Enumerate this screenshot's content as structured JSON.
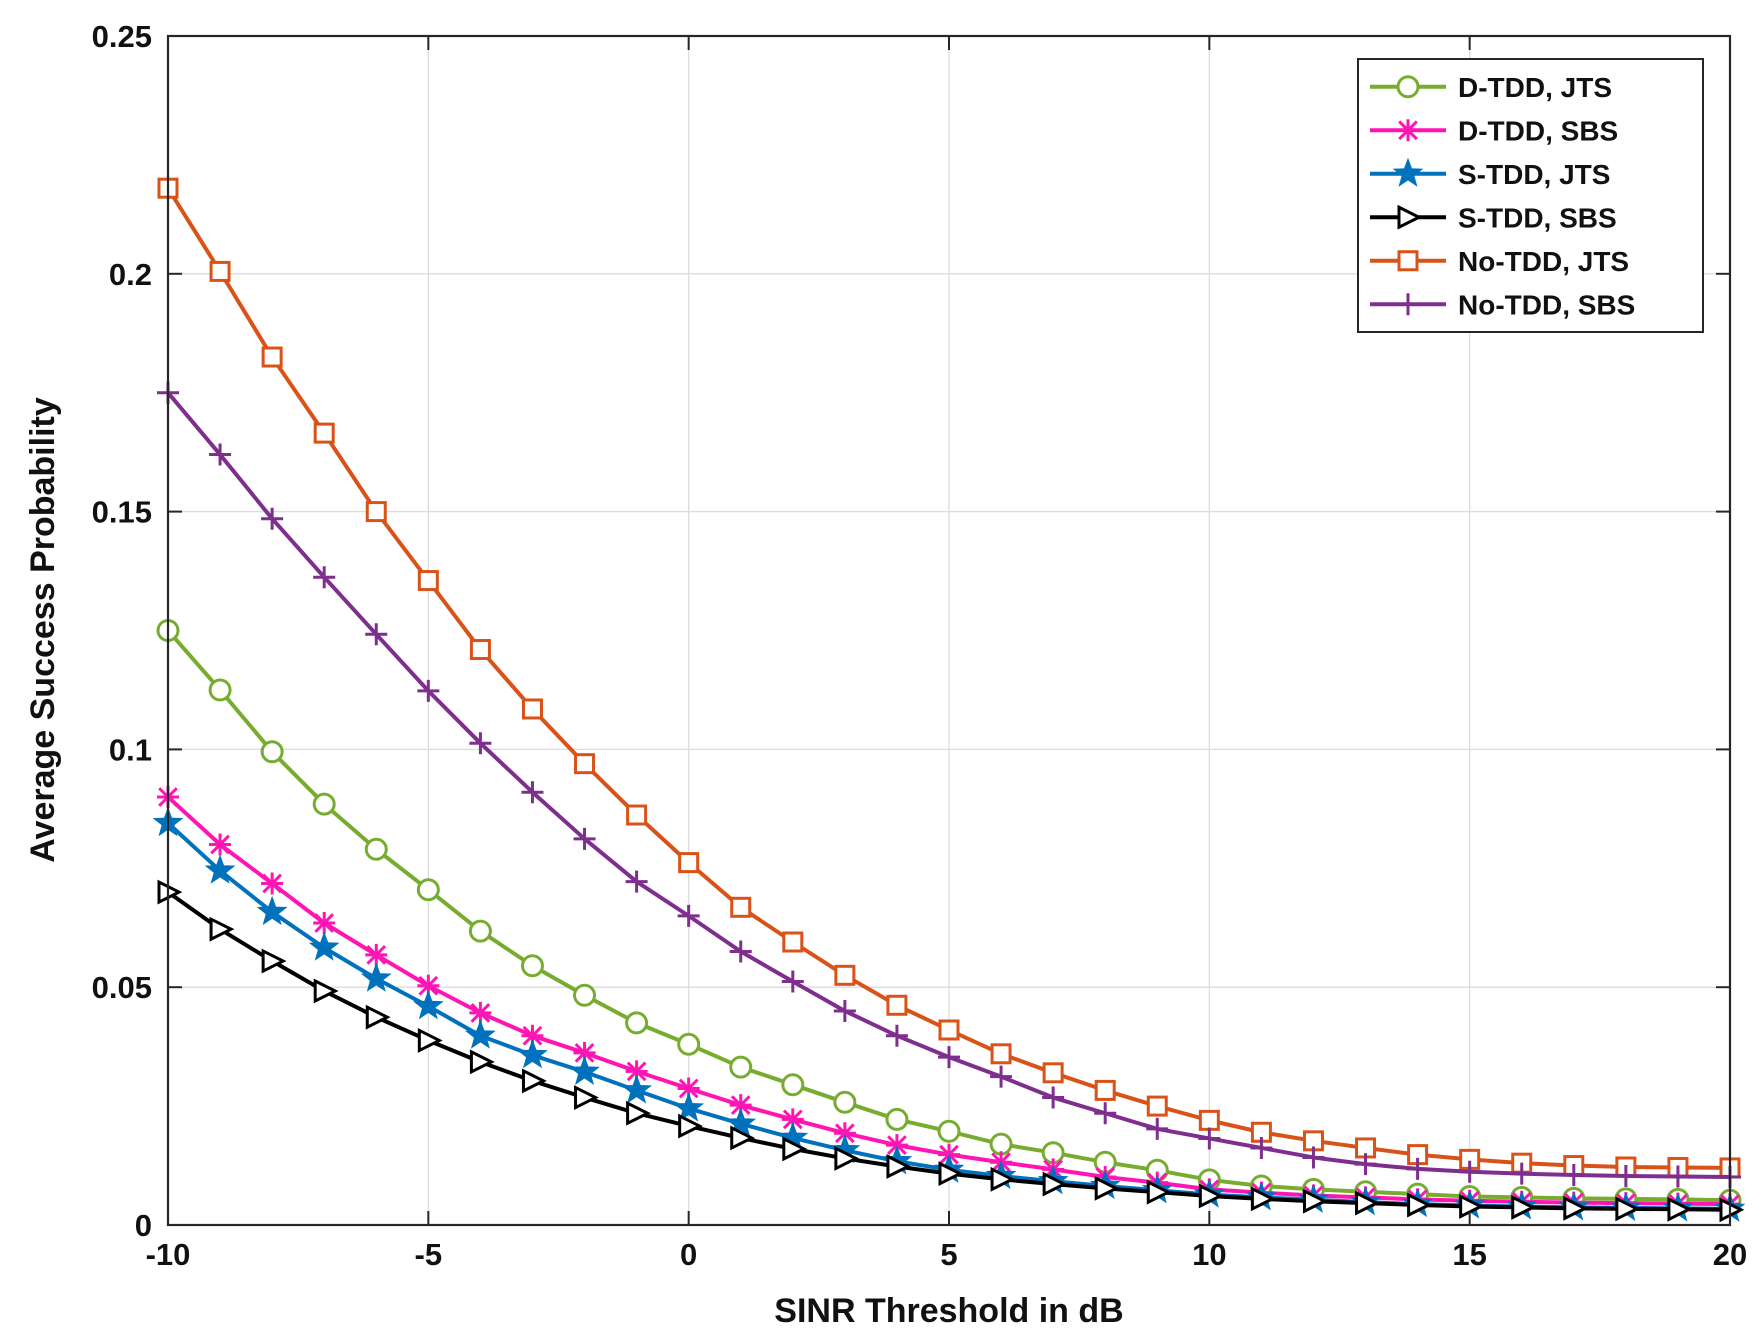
{
  "chart_data": {
    "type": "line",
    "title": "",
    "xlabel": "SINR Threshold in dB",
    "ylabel": "Average Success Probability",
    "xlim": [
      -10,
      20
    ],
    "ylim": [
      0,
      0.25
    ],
    "xticks": [
      -10,
      -5,
      0,
      5,
      10,
      15,
      20
    ],
    "yticks": [
      0,
      0.05,
      0.1,
      0.15,
      0.2,
      0.25
    ],
    "xtick_labels": [
      "-10",
      "-5",
      "0",
      "5",
      "10",
      "15",
      "20"
    ],
    "ytick_labels": [
      "0",
      "0.05",
      "0.1",
      "0.15",
      "0.2",
      "0.25"
    ],
    "grid": true,
    "legend_position": "top-right",
    "x": [
      -10,
      -9,
      -8,
      -7,
      -6,
      -5,
      -4,
      -3,
      -2,
      -1,
      0,
      1,
      2,
      3,
      4,
      5,
      6,
      7,
      8,
      9,
      10,
      11,
      12,
      13,
      14,
      15,
      16,
      17,
      18,
      19,
      20
    ],
    "series": [
      {
        "name": "D-TDD, JTS",
        "color": "#77AC30",
        "marker": "circle",
        "values": [
          0.125,
          0.1125,
          0.0995,
          0.0885,
          0.079,
          0.0705,
          0.0618,
          0.0545,
          0.0483,
          0.0425,
          0.038,
          0.0332,
          0.0295,
          0.0258,
          0.0222,
          0.0197,
          0.017,
          0.0152,
          0.0132,
          0.0115,
          0.0095,
          0.0082,
          0.0075,
          0.007,
          0.0065,
          0.006,
          0.0058,
          0.0056,
          0.0055,
          0.0054,
          0.0052
        ]
      },
      {
        "name": "D-TDD, SBS",
        "color": "#FF14B4",
        "marker": "asterisk",
        "values": [
          0.09,
          0.08,
          0.0718,
          0.0635,
          0.0568,
          0.0503,
          0.0446,
          0.0398,
          0.0362,
          0.0323,
          0.0287,
          0.0252,
          0.0222,
          0.0193,
          0.0168,
          0.0148,
          0.0132,
          0.0117,
          0.0101,
          0.0089,
          0.0075,
          0.0068,
          0.0062,
          0.0058,
          0.0054,
          0.0051,
          0.0049,
          0.0047,
          0.0046,
          0.0045,
          0.0044
        ]
      },
      {
        "name": "S-TDD, JTS",
        "color": "#0072BD",
        "marker": "pentagram",
        "values": [
          0.0845,
          0.0745,
          0.0658,
          0.0583,
          0.0518,
          0.046,
          0.0398,
          0.0357,
          0.0322,
          0.0283,
          0.0245,
          0.0213,
          0.0183,
          0.0157,
          0.0134,
          0.0116,
          0.0103,
          0.0092,
          0.0082,
          0.0073,
          0.0064,
          0.0058,
          0.0053,
          0.0048,
          0.0044,
          0.0041,
          0.0039,
          0.0037,
          0.0036,
          0.0035,
          0.0034
        ]
      },
      {
        "name": "S-TDD, SBS",
        "color": "#000000",
        "marker": "triangle-right",
        "values": [
          0.07,
          0.0622,
          0.0555,
          0.0492,
          0.0437,
          0.0388,
          0.0343,
          0.0303,
          0.0268,
          0.0235,
          0.0208,
          0.0183,
          0.016,
          0.014,
          0.0123,
          0.0108,
          0.0096,
          0.0086,
          0.0077,
          0.0069,
          0.0061,
          0.0055,
          0.005,
          0.0046,
          0.0042,
          0.0039,
          0.0037,
          0.0035,
          0.0034,
          0.0033,
          0.0032
        ]
      },
      {
        "name": "No-TDD, JTS",
        "color": "#D95319",
        "marker": "square",
        "values": [
          0.218,
          0.2005,
          0.1825,
          0.1665,
          0.15,
          0.1355,
          0.121,
          0.1085,
          0.097,
          0.0862,
          0.0762,
          0.0668,
          0.0595,
          0.0525,
          0.0462,
          0.041,
          0.036,
          0.032,
          0.0283,
          0.025,
          0.022,
          0.0195,
          0.0177,
          0.0162,
          0.0148,
          0.0138,
          0.013,
          0.0125,
          0.0122,
          0.0121,
          0.012
        ]
      },
      {
        "name": "No-TDD, SBS",
        "color": "#7E2F8E",
        "marker": "plus",
        "values": [
          0.175,
          0.162,
          0.1485,
          0.1362,
          0.1242,
          0.1123,
          0.1013,
          0.091,
          0.0812,
          0.0722,
          0.065,
          0.0575,
          0.0512,
          0.045,
          0.0398,
          0.0353,
          0.0312,
          0.0268,
          0.0235,
          0.0202,
          0.0182,
          0.0162,
          0.0142,
          0.0128,
          0.0118,
          0.0112,
          0.0108,
          0.0105,
          0.0103,
          0.0102,
          0.0101
        ]
      }
    ]
  }
}
